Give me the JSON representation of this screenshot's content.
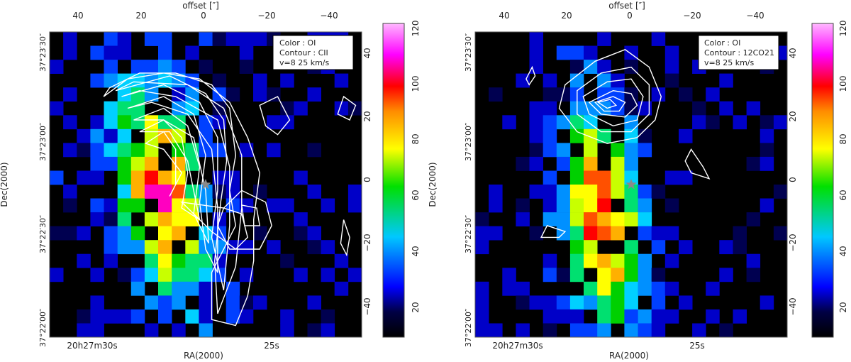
{
  "chart_data": [
    {
      "type": "heatmap",
      "id": "left",
      "title": "",
      "legend_lines": [
        "Color : OI",
        "Contour : CII",
        "v=8 25 km/s"
      ],
      "xlabel": "RA(2000)",
      "ylabel": "Dec(2000)",
      "top_axis_label": "offset [″]",
      "right_axis_label": "Dec(2000)",
      "x_offset_ticks": [
        "40",
        "20",
        "0",
        "−20",
        "−40"
      ],
      "y_offset_ticks": [
        "40",
        "20",
        "0",
        "−20",
        "−40"
      ],
      "ra_ticks": [
        "20h27m30s",
        "25s"
      ],
      "dec_ticks": [
        "37°23′30″",
        "37°23′00″",
        "37°22′30″",
        "37°22′00″"
      ],
      "colorbar": {
        "ticks": [
          "120",
          "100",
          "80",
          "60",
          "40",
          "20"
        ],
        "range": [
          10,
          122
        ]
      },
      "xlim": [
        52,
        -52
      ],
      "ylim": [
        -52,
        52
      ],
      "marker": {
        "symbol": "star",
        "offset": [
          0,
          0
        ]
      },
      "contours": [
        {
          "level": 1,
          "points": [
            [
              32,
              33
            ],
            [
              22,
              38
            ],
            [
              10,
              38
            ],
            [
              -2,
              34
            ],
            [
              -8,
              26
            ],
            [
              -10,
              10
            ],
            [
              -8,
              -2
            ],
            [
              -10,
              -14
            ],
            [
              -6,
              -22
            ],
            [
              -2,
              -30
            ],
            [
              -2,
              -46
            ],
            [
              -10,
              -48
            ],
            [
              -14,
              -38
            ],
            [
              -16,
              -26
            ],
            [
              -16,
              -12
            ],
            [
              -18,
              4
            ],
            [
              -14,
              16
            ],
            [
              -8,
              28
            ],
            [
              2,
              36
            ],
            [
              14,
              38
            ],
            [
              26,
              36
            ],
            [
              34,
              30
            ]
          ]
        },
        {
          "level": 2,
          "points": [
            [
              30,
              32
            ],
            [
              12,
              37
            ],
            [
              0,
              31
            ],
            [
              -6,
              22
            ],
            [
              -7,
              8
            ],
            [
              -5,
              -6
            ],
            [
              -3,
              -26
            ],
            [
              -4,
              -44
            ],
            [
              -10,
              -28
            ],
            [
              -12,
              -8
            ],
            [
              -12,
              10
            ],
            [
              -6,
              26
            ],
            [
              6,
              34
            ],
            [
              24,
              35
            ]
          ]
        },
        {
          "level": 3,
          "points": [
            [
              28,
              30
            ],
            [
              14,
              34
            ],
            [
              2,
              28
            ],
            [
              -4,
              16
            ],
            [
              -4,
              -2
            ],
            [
              -2,
              -18
            ],
            [
              -6,
              -36
            ],
            [
              -8,
              -14
            ],
            [
              -8,
              6
            ],
            [
              -4,
              22
            ],
            [
              10,
              30
            ],
            [
              22,
              32
            ]
          ]
        },
        {
          "level": 4,
          "points": [
            [
              26,
              26
            ],
            [
              14,
              30
            ],
            [
              4,
              24
            ],
            [
              0,
              10
            ],
            [
              2,
              -6
            ],
            [
              0,
              -22
            ],
            [
              -4,
              -30
            ],
            [
              -4,
              -8
            ],
            [
              -2,
              12
            ],
            [
              6,
              24
            ],
            [
              18,
              28
            ]
          ]
        },
        {
          "level": 5,
          "points": [
            [
              24,
              22
            ],
            [
              14,
              26
            ],
            [
              6,
              20
            ],
            [
              2,
              6
            ],
            [
              4,
              -10
            ],
            [
              -1,
              -20
            ],
            [
              0,
              -2
            ],
            [
              4,
              16
            ],
            [
              14,
              22
            ]
          ]
        },
        {
          "level": 6,
          "points": [
            [
              22,
              18
            ],
            [
              14,
              22
            ],
            [
              8,
              16
            ],
            [
              6,
              4
            ],
            [
              8,
              -8
            ],
            [
              2,
              -12
            ],
            [
              6,
              8
            ],
            [
              12,
              18
            ]
          ]
        },
        {
          "level": 7,
          "points": [
            [
              20,
              14
            ],
            [
              14,
              18
            ],
            [
              10,
              12
            ],
            [
              10,
              0
            ],
            [
              12,
              -4
            ],
            [
              8,
              4
            ],
            [
              14,
              12
            ]
          ]
        },
        {
          "level": 8,
          "points": [
            [
              8,
              -6
            ],
            [
              -6,
              -8
            ],
            [
              -12,
              -10
            ],
            [
              -14,
              -18
            ],
            [
              -10,
              -22
            ],
            [
              -2,
              -16
            ],
            [
              4,
              -10
            ]
          ]
        },
        {
          "level": 9,
          "points": [
            [
              -6,
              -8
            ],
            [
              -12,
              -2
            ],
            [
              -20,
              -6
            ],
            [
              -22,
              -14
            ],
            [
              -18,
              -22
            ],
            [
              -8,
              -22
            ],
            [
              -4,
              -14
            ]
          ]
        },
        {
          "level": 10,
          "points": [
            [
              -12,
              -7
            ],
            [
              -17,
              -8
            ],
            [
              -18,
              -14
            ],
            [
              -13,
              -14
            ]
          ]
        },
        {
          "level": 11,
          "points": [
            [
              -18,
              27
            ],
            [
              -24,
              30
            ],
            [
              -28,
              22
            ],
            [
              -24,
              17
            ],
            [
              -20,
              20
            ]
          ]
        },
        {
          "level": 12,
          "points": [
            [
              -46,
              30
            ],
            [
              -50,
              27
            ],
            [
              -48,
              22
            ],
            [
              -44,
              24
            ]
          ]
        },
        {
          "level": 13,
          "points": [
            [
              -46,
              -12
            ],
            [
              -48,
              -18
            ],
            [
              -47,
              -24
            ],
            [
              -45,
              -20
            ]
          ]
        }
      ]
    },
    {
      "type": "heatmap",
      "id": "right",
      "title": "",
      "legend_lines": [
        "Color : OI",
        "Contour : 12CO21",
        "v=8 25 km/s"
      ],
      "xlabel": "RA(2000)",
      "ylabel": "Dec(2000)",
      "top_axis_label": "offset [″]",
      "x_offset_ticks": [
        "40",
        "20",
        "0",
        "−20",
        "−40"
      ],
      "y_offset_ticks": [
        "40",
        "20",
        "0",
        "−20",
        "−40"
      ],
      "ra_ticks": [
        "20h27m30s",
        "25s"
      ],
      "dec_ticks": [
        "37°23′30″",
        "37°23′00″",
        "37°22′30″",
        "37°22′00″"
      ],
      "colorbar": {
        "ticks": [
          "120",
          "100",
          "80",
          "60",
          "40",
          "20"
        ],
        "range": [
          10,
          122
        ]
      },
      "xlim": [
        52,
        -52
      ],
      "ylim": [
        -52,
        52
      ],
      "marker": {
        "symbol": "star",
        "offset": [
          0,
          0
        ]
      },
      "contours": [
        {
          "level": 1,
          "points": [
            [
              22,
              34
            ],
            [
              12,
              42
            ],
            [
              2,
              46
            ],
            [
              -6,
              40
            ],
            [
              -10,
              30
            ],
            [
              -8,
              22
            ],
            [
              -2,
              16
            ],
            [
              8,
              14
            ],
            [
              18,
              18
            ],
            [
              24,
              26
            ]
          ]
        },
        {
          "level": 2,
          "points": [
            [
              18,
              32
            ],
            [
              10,
              38
            ],
            [
              0,
              40
            ],
            [
              -6,
              34
            ],
            [
              -6,
              24
            ],
            [
              0,
              18
            ],
            [
              10,
              18
            ],
            [
              18,
              24
            ]
          ]
        },
        {
          "level": 3,
          "points": [
            [
              16,
              30
            ],
            [
              8,
              35
            ],
            [
              0,
              36
            ],
            [
              -4,
              30
            ],
            [
              -2,
              22
            ],
            [
              6,
              20
            ],
            [
              14,
              24
            ]
          ]
        },
        {
          "level": 4,
          "points": [
            [
              14,
              28
            ],
            [
              6,
              32
            ],
            [
              0,
              31
            ],
            [
              -2,
              27
            ],
            [
              2,
              23
            ],
            [
              10,
              24
            ]
          ]
        },
        {
          "level": 5,
          "points": [
            [
              12,
              28
            ],
            [
              6,
              30
            ],
            [
              2,
              28
            ],
            [
              4,
              25
            ],
            [
              9,
              25
            ]
          ]
        },
        {
          "level": 6,
          "points": [
            [
              11,
              28
            ],
            [
              7,
              29
            ],
            [
              5,
              27
            ],
            [
              8,
              26
            ]
          ]
        },
        {
          "level": 7,
          "points": [
            [
              33,
              40
            ],
            [
              35,
              36
            ],
            [
              34,
              34
            ],
            [
              32,
              37
            ]
          ]
        },
        {
          "level": 8,
          "points": [
            [
              -20,
              12
            ],
            [
              -24,
              6
            ],
            [
              -26,
              2
            ],
            [
              -20,
              4
            ],
            [
              -18,
              8
            ]
          ]
        },
        {
          "level": 9,
          "points": [
            [
              22,
              -16
            ],
            [
              28,
              -14
            ],
            [
              30,
              -18
            ],
            [
              24,
              -18
            ]
          ]
        }
      ]
    }
  ]
}
